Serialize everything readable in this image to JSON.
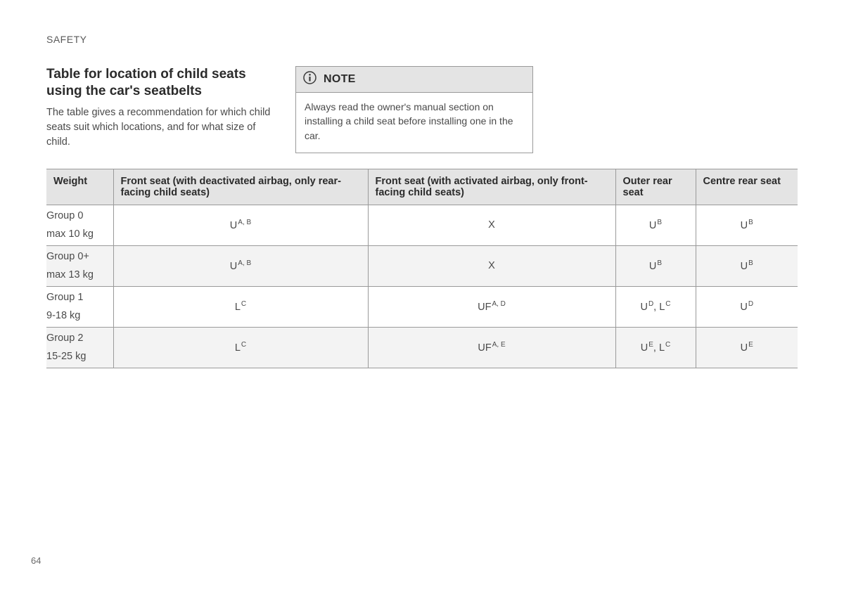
{
  "section": "SAFETY",
  "page_number": "64",
  "intro": {
    "title": "Table for location of child seats using the car's seatbelts",
    "paragraph": "The table gives a recommendation for which child seats suit which locations, and for what size of child."
  },
  "note": {
    "label": "NOTE",
    "body": "Always read the owner's manual section on installing a child seat before installing one in the car."
  },
  "table": {
    "columns": [
      "Weight",
      "Front seat (with deactivated airbag, only rear-facing child seats)",
      "Front seat (with activated airbag, only front-facing child seats)",
      "Outer rear seat",
      "Centre rear seat"
    ],
    "rows": [
      {
        "weight_line1": "Group 0",
        "weight_line2": "max 10 kg",
        "cells": [
          {
            "text": "U",
            "sup": "A, B"
          },
          {
            "text": "X",
            "sup": ""
          },
          {
            "text": "U",
            "sup": "B"
          },
          {
            "text": "U",
            "sup": "B"
          }
        ]
      },
      {
        "weight_line1": "Group 0+",
        "weight_line2": "max 13 kg",
        "cells": [
          {
            "text": "U",
            "sup": "A, B"
          },
          {
            "text": "X",
            "sup": ""
          },
          {
            "text": "U",
            "sup": "B"
          },
          {
            "text": "U",
            "sup": "B"
          }
        ]
      },
      {
        "weight_line1": "Group 1",
        "weight_line2": "9-18 kg",
        "cells": [
          {
            "text": "L",
            "sup": "C"
          },
          {
            "text": "UF",
            "sup": "A, D"
          },
          {
            "text": "U<sup>D</sup>, L",
            "sup": "C",
            "html": true
          },
          {
            "text": "U",
            "sup": "D"
          }
        ]
      },
      {
        "weight_line1": "Group 2",
        "weight_line2": "15-25 kg",
        "cells": [
          {
            "text": "L",
            "sup": "C"
          },
          {
            "text": "UF",
            "sup": "A, E"
          },
          {
            "text": "U<sup>E</sup>, L",
            "sup": "C",
            "html": true
          },
          {
            "text": "U",
            "sup": "E"
          }
        ]
      }
    ]
  }
}
